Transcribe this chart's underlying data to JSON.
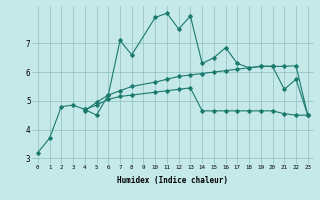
{
  "xlabel": "Humidex (Indice chaleur)",
  "background_color": "#c5e8e8",
  "grid_color": "#8fbfbf",
  "line_color": "#1a7a6e",
  "x_values": [
    0,
    1,
    2,
    3,
    4,
    5,
    6,
    7,
    8,
    9,
    10,
    11,
    12,
    13,
    14,
    15,
    16,
    17,
    18,
    19,
    20,
    21,
    22,
    23
  ],
  "line1": [
    3.2,
    3.7,
    4.8,
    4.85,
    4.7,
    4.5,
    5.2,
    7.1,
    6.6,
    null,
    7.9,
    8.05,
    7.5,
    7.95,
    6.3,
    6.5,
    6.85,
    6.3,
    6.15,
    6.2,
    6.2,
    5.4,
    5.75,
    4.5
  ],
  "line2": [
    null,
    null,
    null,
    null,
    4.7,
    4.85,
    5.05,
    5.15,
    5.2,
    null,
    5.3,
    5.35,
    5.4,
    5.45,
    4.65,
    4.65,
    4.65,
    4.65,
    4.65,
    4.65,
    4.65,
    4.55,
    4.5,
    4.5
  ],
  "line3": [
    null,
    null,
    null,
    null,
    4.65,
    4.95,
    5.2,
    5.35,
    5.5,
    null,
    5.65,
    5.75,
    5.85,
    5.9,
    5.95,
    6.0,
    6.05,
    6.1,
    6.15,
    6.2,
    6.2,
    6.2,
    6.22,
    4.5
  ],
  "ylim": [
    2.8,
    8.3
  ],
  "yticks": [
    3,
    4,
    5,
    6,
    7
  ],
  "xticks": [
    0,
    1,
    2,
    3,
    4,
    5,
    6,
    7,
    8,
    9,
    10,
    11,
    12,
    13,
    14,
    15,
    16,
    17,
    18,
    19,
    20,
    21,
    22,
    23
  ]
}
